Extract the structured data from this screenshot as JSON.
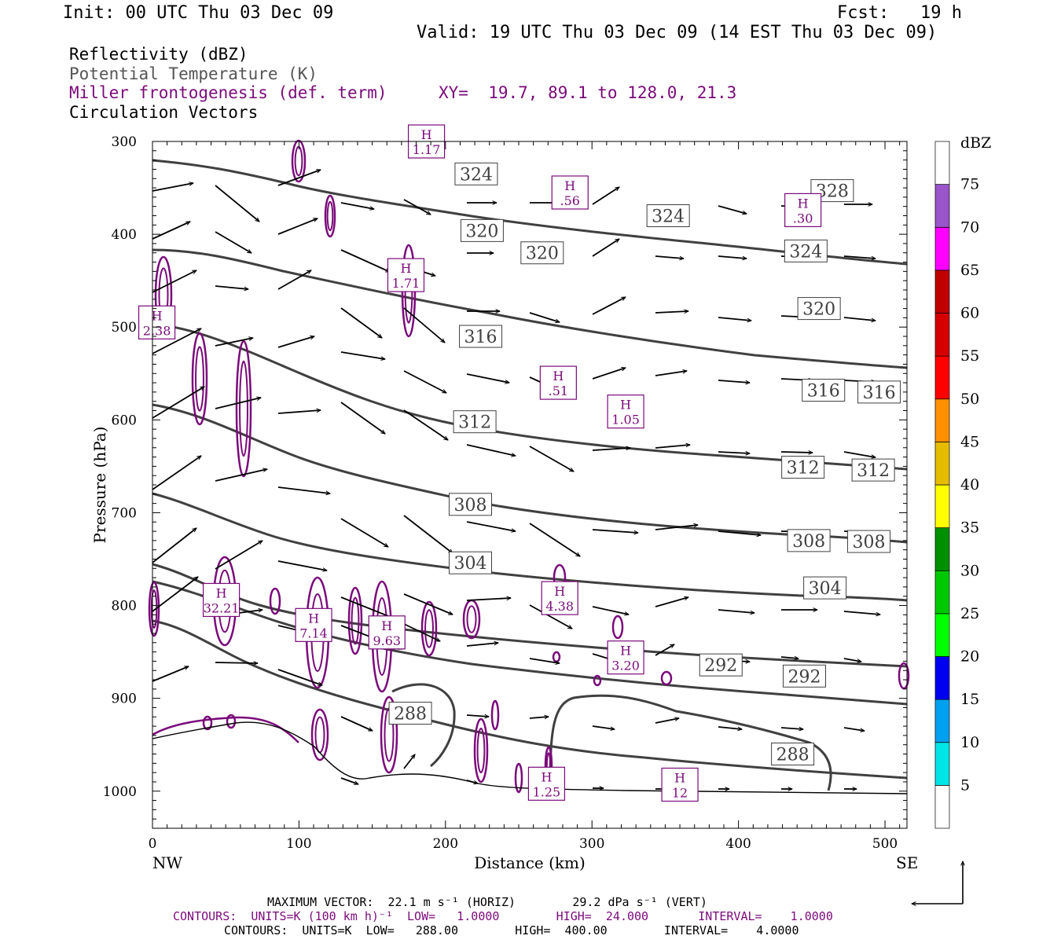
{
  "header": {
    "init": "Init: 00 UTC Thu 03 Dec 09",
    "fcst": "Fcst:   19 h",
    "valid": "Valid: 19 UTC Thu 03 Dec 09 (14 EST Thu 03 Dec 09)"
  },
  "legend": {
    "reflectivity": "Reflectivity (dBZ)",
    "theta": "Potential Temperature (K)",
    "miller": "Miller frontogenesis (def. term)",
    "xy": "XY=  19.7, 89.1 to 128.0, 21.3",
    "vectors": "Circulation Vectors"
  },
  "colors": {
    "theta": "#404040",
    "frontogenesis": "#7a0a7a",
    "vector": "#000000"
  },
  "chart_data": {
    "type": "cross-section",
    "xlabel": "Distance (km)",
    "ylabel": "Pressure (hPa)",
    "xlim": [
      0,
      515
    ],
    "ylim": [
      1040,
      300
    ],
    "x_ticks": [
      0,
      100,
      200,
      300,
      400,
      500
    ],
    "y_ticks": [
      300,
      400,
      500,
      600,
      700,
      800,
      900,
      1000
    ],
    "left_end_label": "NW",
    "right_end_label": "SE",
    "colorbar": {
      "unit": "dBZ",
      "levels": [
        5,
        10,
        15,
        20,
        25,
        30,
        35,
        40,
        45,
        50,
        55,
        60,
        65,
        70,
        75
      ],
      "colors": [
        "#ffffff",
        "#00e5e5",
        "#00a0f0",
        "#0000f0",
        "#00ff00",
        "#00c800",
        "#009000",
        "#ffff00",
        "#e6bc00",
        "#ff9000",
        "#ff0000",
        "#d60000",
        "#c00000",
        "#ff00ff",
        "#9955c9",
        "#ffffff"
      ]
    },
    "theta_labels": [
      {
        "v": "324",
        "x": 221,
        "p": 335
      },
      {
        "v": "324",
        "x": 352,
        "p": 380
      },
      {
        "v": "324",
        "x": 446,
        "p": 418
      },
      {
        "v": "328",
        "x": 464,
        "p": 353
      },
      {
        "v": "320",
        "x": 225,
        "p": 396
      },
      {
        "v": "320",
        "x": 266,
        "p": 420
      },
      {
        "v": "320",
        "x": 455,
        "p": 480
      },
      {
        "v": "316",
        "x": 224,
        "p": 510
      },
      {
        "v": "316",
        "x": 458,
        "p": 568
      },
      {
        "v": "316",
        "x": 496,
        "p": 570
      },
      {
        "v": "312",
        "x": 220,
        "p": 602
      },
      {
        "v": "312",
        "x": 444,
        "p": 651
      },
      {
        "v": "312",
        "x": 492,
        "p": 654
      },
      {
        "v": "308",
        "x": 217,
        "p": 691
      },
      {
        "v": "308",
        "x": 448,
        "p": 730
      },
      {
        "v": "308",
        "x": 489,
        "p": 731
      },
      {
        "v": "304",
        "x": 217,
        "p": 754
      },
      {
        "v": "304",
        "x": 459,
        "p": 781
      },
      {
        "v": "292",
        "x": 388,
        "p": 864
      },
      {
        "v": "292",
        "x": 445,
        "p": 876
      },
      {
        "v": "288",
        "x": 176,
        "p": 916
      },
      {
        "v": "288",
        "x": 437,
        "p": 960
      }
    ],
    "maxima": [
      {
        "v": "1.17",
        "x": 187,
        "p": 300
      },
      {
        "v": ".56",
        "x": 285,
        "p": 355
      },
      {
        "v": ".30",
        "x": 444,
        "p": 374
      },
      {
        "v": "1.71",
        "x": 173,
        "p": 444
      },
      {
        "v": "2.38",
        "x": 3,
        "p": 495
      },
      {
        "v": ".51",
        "x": 277,
        "p": 560
      },
      {
        "v": "1.05",
        "x": 323,
        "p": 591
      },
      {
        "v": "32.21",
        "x": 47,
        "p": 794
      },
      {
        "v": "4.38",
        "x": 278,
        "p": 792
      },
      {
        "v": "7.14",
        "x": 110,
        "p": 821
      },
      {
        "v": "9.63",
        "x": 160,
        "p": 829
      },
      {
        "v": "3.20",
        "x": 323,
        "p": 856
      },
      {
        "v": "1.25",
        "x": 269,
        "p": 992
      },
      {
        "v": "12",
        "x": 360,
        "p": 993
      }
    ],
    "max_letter": "H"
  },
  "footer": {
    "line1": "MAXIMUM VECTOR:  22.1 m s⁻¹ (HORIZ)        29.2 dPa s⁻¹ (VERT)",
    "line2": "CONTOURS:  UNITS=K (100 km h)⁻¹  LOW=   1.0000        HIGH=  24.000       INTERVAL=    1.0000",
    "line3": "CONTOURS:  UNITS=K  LOW=   288.00        HIGH=  400.00        INTERVAL=    4.0000"
  }
}
